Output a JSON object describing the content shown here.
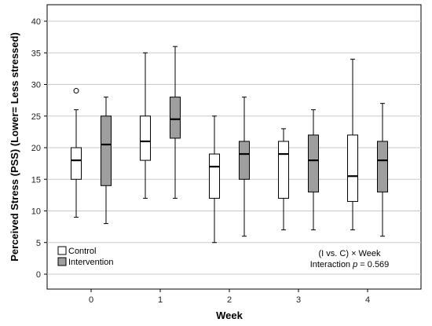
{
  "chart_data": {
    "type": "boxplot",
    "xlabel": "Week",
    "ylabel": "Perceived Stress (PSS) (Lower= Less stressed)",
    "ylim": [
      -3,
      42
    ],
    "yticks": [
      0,
      5,
      10,
      15,
      20,
      25,
      30,
      35,
      40
    ],
    "categories": [
      "0",
      "1",
      "2",
      "3",
      "4"
    ],
    "grid": "horizontal",
    "legend_position": "bottom-left",
    "series": [
      {
        "name": "Control",
        "color": "#ffffff",
        "boxes": [
          {
            "min": 9,
            "q1": 15,
            "median": 18,
            "q3": 20,
            "max": 26,
            "outliers": [
              29
            ]
          },
          {
            "min": 12,
            "q1": 18,
            "median": 21,
            "q3": 25,
            "max": 35,
            "outliers": []
          },
          {
            "min": 5,
            "q1": 12,
            "median": 17,
            "q3": 19,
            "max": 25,
            "outliers": []
          },
          {
            "min": 7,
            "q1": 12,
            "median": 19,
            "q3": 21,
            "max": 23,
            "outliers": []
          },
          {
            "min": 7,
            "q1": 11.5,
            "median": 15.5,
            "q3": 22,
            "max": 34,
            "outliers": []
          }
        ]
      },
      {
        "name": "Intervention",
        "color": "#9e9e9e",
        "boxes": [
          {
            "min": 8,
            "q1": 14,
            "median": 20.5,
            "q3": 25,
            "max": 28,
            "outliers": []
          },
          {
            "min": 12,
            "q1": 21.5,
            "median": 24.5,
            "q3": 28,
            "max": 36,
            "outliers": []
          },
          {
            "min": 6,
            "q1": 15,
            "median": 19,
            "q3": 21,
            "max": 28,
            "outliers": []
          },
          {
            "min": 7,
            "q1": 13,
            "median": 18,
            "q3": 22,
            "max": 26,
            "outliers": []
          },
          {
            "min": 6,
            "q1": 13,
            "median": 18,
            "q3": 21,
            "max": 27,
            "outliers": []
          }
        ]
      }
    ],
    "annotation": {
      "line1": "(I vs. C) × Week",
      "line2_prefix": "Interaction ",
      "line2_italic": "p",
      "line2_suffix": " = 0.569"
    }
  }
}
